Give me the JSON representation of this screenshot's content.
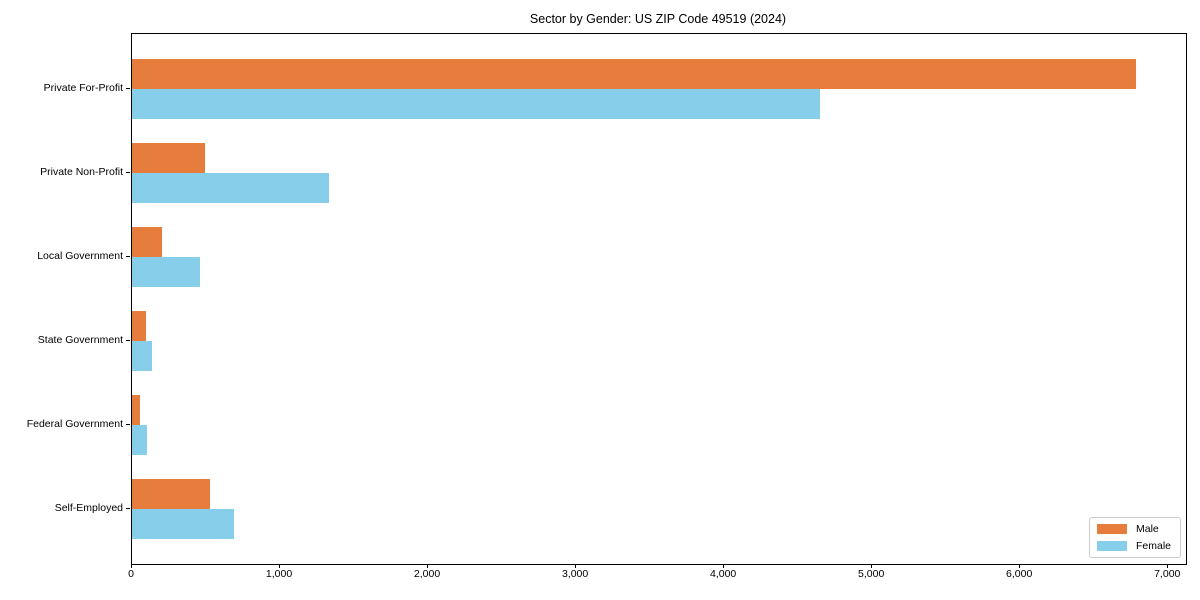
{
  "chart_data": {
    "type": "bar",
    "orientation": "horizontal",
    "title": "Sector by Gender: US ZIP Code 49519 (2024)",
    "categories": [
      "Private For-Profit",
      "Private Non-Profit",
      "Local Government",
      "State Government",
      "Federal Government",
      "Self-Employed"
    ],
    "series": [
      {
        "name": "Male",
        "color": "#e77d3d",
        "values": [
          6780,
          490,
          200,
          95,
          55,
          525
        ]
      },
      {
        "name": "Female",
        "color": "#87ceeb",
        "values": [
          4650,
          1330,
          460,
          135,
          100,
          690
        ]
      }
    ],
    "xlim": [
      0,
      7120
    ],
    "x_ticks": [
      0,
      1000,
      2000,
      3000,
      4000,
      5000,
      6000,
      7000
    ],
    "x_tick_labels": [
      "0",
      "1,000",
      "2,000",
      "3,000",
      "4,000",
      "5,000",
      "6,000",
      "7,000"
    ],
    "xlabel": "",
    "ylabel": "",
    "legend_position": "lower right",
    "grid": false,
    "spine_color": "#000000"
  }
}
